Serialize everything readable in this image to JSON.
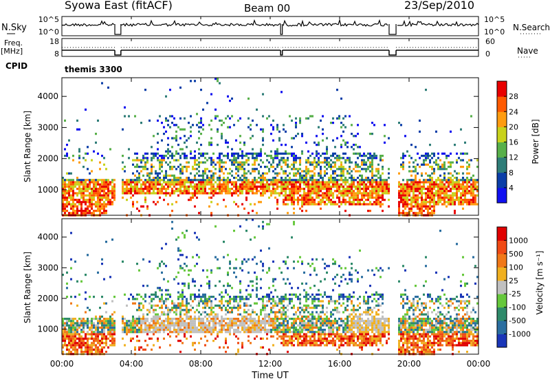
{
  "header": {
    "station": "Syowa East (fitACF)",
    "beam": "Beam 00",
    "date": "23/Sep/2010"
  },
  "noise_panel": {
    "left_label": "N.Sky",
    "right_label": "N.Search",
    "left_ticks": [
      "10^5",
      "10^0"
    ],
    "right_ticks": [
      "10^5",
      "10^0"
    ]
  },
  "freq_panel": {
    "left_label_1": "Freq.",
    "left_label_2": "[MHz]",
    "right_label": "Nave",
    "left_ticks": [
      "18",
      "8"
    ],
    "right_ticks": [
      "60",
      "0"
    ]
  },
  "cpid": {
    "label": "CPID",
    "value": "themis 3300"
  },
  "time_axis": {
    "label": "Time UT",
    "ticks": [
      "00:00",
      "04:00",
      "08:00",
      "12:00",
      "16:00",
      "20:00",
      "00:00"
    ]
  },
  "chart_data": [
    {
      "type": "heatmap",
      "panel": "power",
      "ylabel": "Slant Range [km]",
      "y_ticks": [
        "1000",
        "2000",
        "3000",
        "4000"
      ],
      "ylim": [
        180,
        4600
      ],
      "xlim_hours": [
        0,
        24
      ],
      "colorbar": {
        "label": "Power [dB]",
        "ticks": [
          "4",
          "8",
          "12",
          "16",
          "20",
          "24",
          "28"
        ],
        "colors": [
          "#1010f0",
          "#0a3ea8",
          "#2e7d78",
          "#58b04a",
          "#c8d21c",
          "#ff9c10",
          "#ff5a00",
          "#e80000"
        ]
      },
      "data_gaps_hours": [
        [
          3.05,
          3.4
        ],
        [
          12.6,
          12.7
        ],
        [
          18.85,
          19.25
        ]
      ]
    },
    {
      "type": "heatmap",
      "panel": "velocity",
      "ylabel": "Slant Range [km]",
      "y_ticks": [
        "1000",
        "2000",
        "3000",
        "4000"
      ],
      "ylim": [
        180,
        4600
      ],
      "xlim_hours": [
        0,
        24
      ],
      "colorbar": {
        "label": "Velocity [m s⁻¹]",
        "ticks": [
          "1000",
          "500",
          "100",
          "25",
          "-25",
          "-100",
          "-500",
          "-1000"
        ],
        "colors": [
          "#1a36b8",
          "#2a6ea0",
          "#2e8a6a",
          "#66c83c",
          "#c0c0c0",
          "#f0b020",
          "#f07818",
          "#f04a14",
          "#e00000"
        ]
      },
      "data_gaps_hours": [
        [
          3.05,
          3.4
        ],
        [
          12.6,
          12.7
        ],
        [
          18.85,
          19.25
        ]
      ]
    }
  ]
}
